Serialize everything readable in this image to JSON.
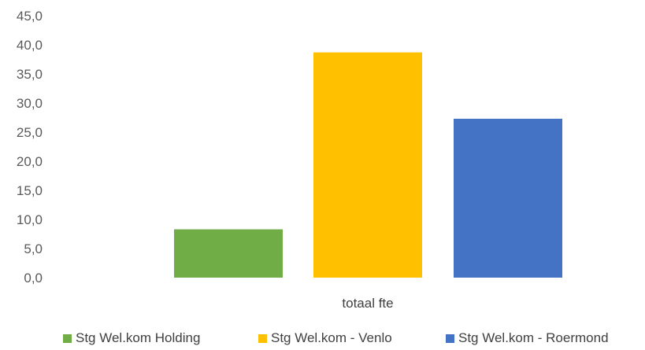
{
  "chart_data": {
    "type": "bar",
    "categories": [
      "totaal fte"
    ],
    "series": [
      {
        "name": "Stg Wel.kom Holding",
        "values": [
          8.3
        ],
        "color": "#70ad47"
      },
      {
        "name": "Stg Wel.kom - Venlo",
        "values": [
          38.7
        ],
        "color": "#ffc000"
      },
      {
        "name": "Stg Wel.kom - Roermond",
        "values": [
          27.3
        ],
        "color": "#4472c4"
      }
    ],
    "ylim": [
      0,
      45
    ],
    "yticks": [
      "0,0",
      "5,0",
      "10,0",
      "15,0",
      "20,0",
      "25,0",
      "30,0",
      "35,0",
      "40,0",
      "45,0"
    ],
    "grid": false,
    "legend": "bottom"
  }
}
